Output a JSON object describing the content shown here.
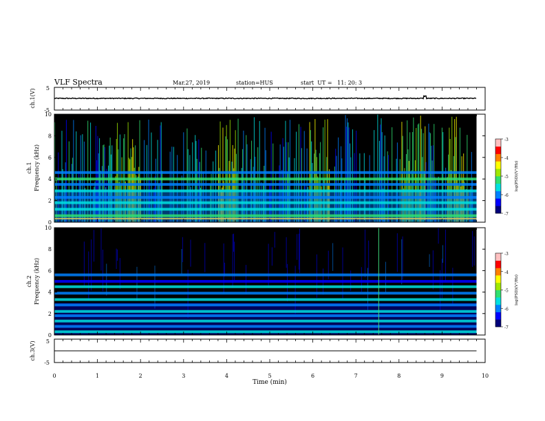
{
  "header": {
    "title": "VLF Spectra",
    "date": "Mar.27, 2019",
    "station": "station=HUS",
    "start": "start  UT =   11: 20: 3"
  },
  "colors": {
    "spectrogram_background": "#000000",
    "trace": "#000000",
    "colormap": [
      "#00007a",
      "#0000ff",
      "#0080ff",
      "#00e0e0",
      "#30e070",
      "#a0e800",
      "#ffff00",
      "#ff8000",
      "#ff0000",
      "#ffc0c0"
    ]
  },
  "chart_data": [
    {
      "type": "line",
      "panel": "ch1-waveform",
      "ylabel": "ch.1(V)",
      "ylim": [
        -5,
        5
      ],
      "ytick_labels": [
        "5",
        "-5"
      ],
      "xlim": [
        0,
        10
      ],
      "x": [
        0,
        1,
        2,
        3,
        4,
        5,
        6,
        7,
        8,
        9,
        9.8
      ],
      "y": [
        0.2,
        0.1,
        0.2,
        0.1,
        0.2,
        0.1,
        0.1,
        0.2,
        0.1,
        0.2,
        0.2
      ],
      "grid": false
    },
    {
      "type": "heatmap",
      "panel": "ch1-spectrogram",
      "ylabel": "ch.1\nFrequency (kHz)",
      "ylim": [
        0,
        10
      ],
      "ytick_labels": [
        "0",
        "2",
        "4",
        "6",
        "8",
        "10"
      ],
      "xlim": [
        0,
        10
      ],
      "data_end_min": 9.8,
      "hum_bands_khz": [
        0.6,
        1.2,
        1.8,
        2.3,
        2.9,
        3.5,
        4.0,
        4.6
      ],
      "hum_level": [
        -5.3,
        -5.8,
        -5.5,
        -5.9,
        -5.6,
        -5.9,
        -5.3,
        -5.9
      ],
      "bright_regions_min": [
        [
          1.4,
          2.0
        ],
        [
          3.8,
          4.3
        ],
        [
          5.9,
          6.4
        ],
        [
          8.0,
          8.6
        ],
        [
          9.1,
          9.6
        ]
      ],
      "colorbar": {
        "label": "log(PSD)(V²/Hz)",
        "ticks": [
          "-3",
          "-4",
          "-5",
          "-6",
          "-7"
        ],
        "range": [
          -7,
          -3
        ]
      }
    },
    {
      "type": "heatmap",
      "panel": "ch2-spectrogram",
      "ylabel": "ch.2\nFrequency (kHz)",
      "ylim": [
        0,
        10
      ],
      "ytick_labels": [
        "0",
        "2",
        "4",
        "6",
        "8",
        "10"
      ],
      "xlim": [
        0,
        10
      ],
      "data_end_min": 9.8,
      "hum_bands_khz": [
        0.3,
        0.8,
        1.3,
        1.8,
        2.2,
        2.8,
        3.3,
        3.9,
        4.5,
        5.0,
        5.6
      ],
      "hum_level": [
        -5.6,
        -6.0,
        -5.5,
        -6.1,
        -5.4,
        -6.0,
        -5.6,
        -6.1,
        -5.7,
        -6.2,
        -5.9
      ],
      "spike_min": 7.52,
      "colorbar": {
        "label": "log(PSD)(V²/Hz)",
        "ticks": [
          "-3",
          "-4",
          "-5",
          "-6",
          "-7"
        ],
        "range": [
          -7,
          -3
        ]
      }
    },
    {
      "type": "line",
      "panel": "ch3-waveform",
      "ylabel": "ch.3(V)",
      "ylim": [
        -5,
        5
      ],
      "ytick_labels": [
        "5",
        "-5"
      ],
      "xlim": [
        0,
        10
      ],
      "x": [
        0,
        10
      ],
      "y": [
        0,
        0
      ],
      "xlabel": "Time (min)",
      "xtick_labels": [
        "0",
        "1",
        "2",
        "3",
        "4",
        "5",
        "6",
        "7",
        "8",
        "9",
        "10"
      ],
      "grid": false
    }
  ]
}
